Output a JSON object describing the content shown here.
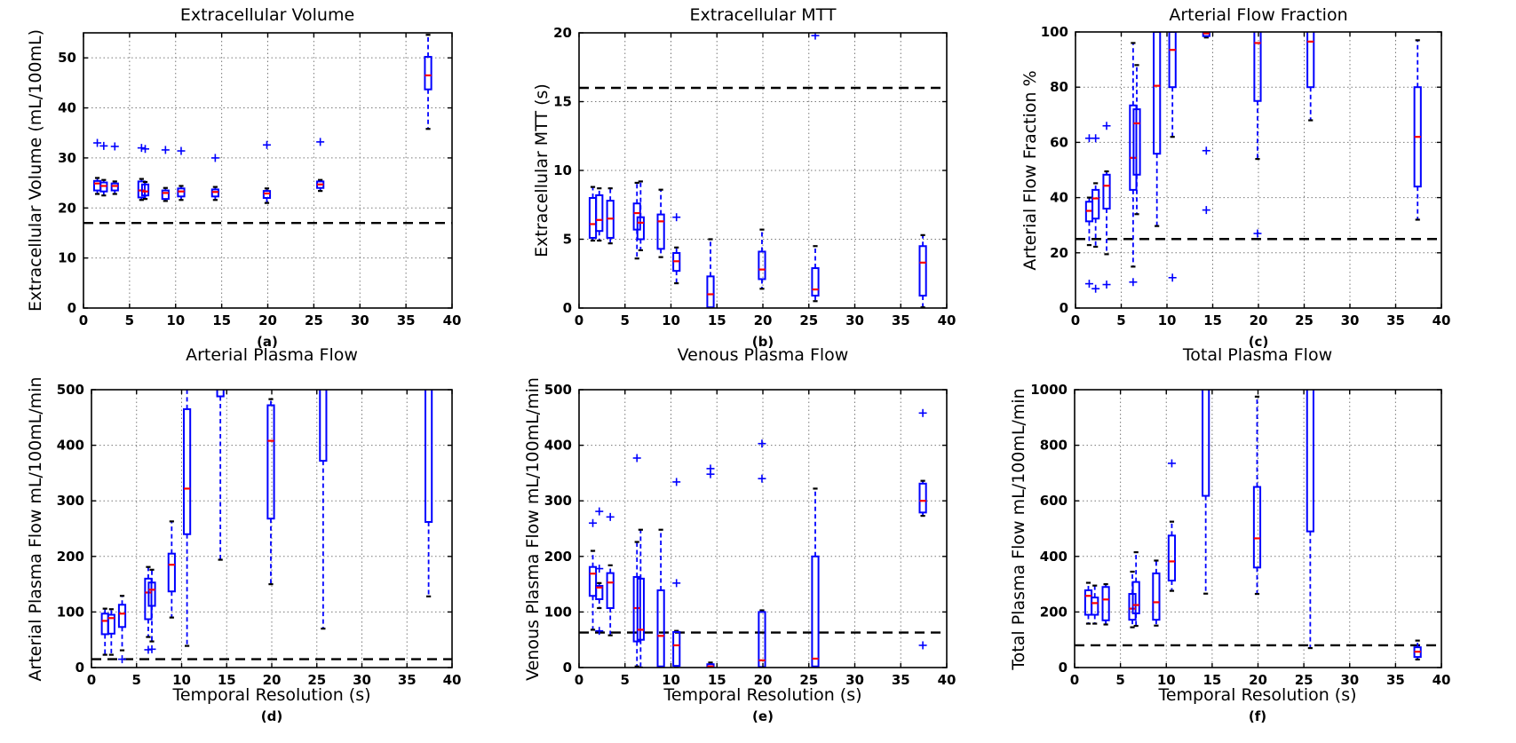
{
  "figure": {
    "xlabel": "Temporal Resolution (s)",
    "x_ticks": [
      0,
      5,
      10,
      15,
      20,
      25,
      30,
      35,
      40
    ],
    "x_range": [
      0,
      40
    ],
    "background": "#ffffff"
  },
  "colors": {
    "box": "#0000ff",
    "median": "#ff0000",
    "whisker": "#0000ff",
    "cap": "#000000",
    "flier": "#0000ff",
    "ref_line": "#000000",
    "grid": "#787878",
    "text": "#000000",
    "spine": "#000000"
  },
  "chart_data": [
    {
      "type": "boxplot",
      "caption": "(a)",
      "title": "Extracellular Volume",
      "ylabel": "Extracellular Volume (mL/100mL)",
      "ylim": [
        0,
        55
      ],
      "yticks": [
        0,
        10,
        20,
        30,
        40,
        50
      ],
      "ref_line": 17,
      "boxes": [
        {
          "x": 1.5,
          "lo": 22.8,
          "q1": 23.5,
          "m": 24.9,
          "q3": 25.4,
          "hi": 26.0,
          "f": [
            33.0
          ]
        },
        {
          "x": 2.2,
          "lo": 22.5,
          "q1": 23.3,
          "m": 24.4,
          "q3": 25.1,
          "hi": 25.6,
          "f": [
            32.4
          ]
        },
        {
          "x": 3.4,
          "lo": 22.8,
          "q1": 23.5,
          "m": 24.4,
          "q3": 24.9,
          "hi": 25.3,
          "f": [
            32.3
          ]
        },
        {
          "x": 6.3,
          "lo": 21.6,
          "q1": 22.1,
          "m": 23.5,
          "q3": 25.3,
          "hi": 25.8,
          "f": [
            32.0
          ]
        },
        {
          "x": 6.7,
          "lo": 21.8,
          "q1": 22.5,
          "m": 23.3,
          "q3": 24.7,
          "hi": 25.2,
          "f": [
            31.8
          ]
        },
        {
          "x": 8.9,
          "lo": 21.4,
          "q1": 21.8,
          "m": 23.0,
          "q3": 23.5,
          "hi": 24.0,
          "f": [
            31.6
          ]
        },
        {
          "x": 10.6,
          "lo": 21.6,
          "q1": 22.3,
          "m": 23.3,
          "q3": 23.9,
          "hi": 24.4,
          "f": [
            31.4
          ]
        },
        {
          "x": 14.3,
          "lo": 21.6,
          "q1": 22.3,
          "m": 23.2,
          "q3": 23.7,
          "hi": 24.2,
          "f": [
            30.0
          ]
        },
        {
          "x": 19.9,
          "lo": 21.0,
          "q1": 22.0,
          "m": 22.9,
          "q3": 23.4,
          "hi": 23.9,
          "f": [
            32.6
          ]
        },
        {
          "x": 25.7,
          "lo": 23.4,
          "q1": 24.0,
          "m": 24.7,
          "q3": 25.3,
          "hi": 25.6,
          "f": [
            33.2
          ]
        },
        {
          "x": 37.4,
          "lo": 35.8,
          "q1": 43.7,
          "m": 46.5,
          "q3": 50.2,
          "hi": 54.6,
          "f": []
        }
      ]
    },
    {
      "type": "boxplot",
      "caption": "(b)",
      "title": "Extracellular MTT",
      "ylabel": "Extracellular MTT (s)",
      "ylim": [
        0,
        20
      ],
      "yticks": [
        0,
        5,
        10,
        15,
        20
      ],
      "ref_line": 16,
      "boxes": [
        {
          "x": 1.5,
          "lo": 4.9,
          "q1": 5.1,
          "m": 6.1,
          "q3": 8.0,
          "hi": 8.8,
          "f": []
        },
        {
          "x": 2.2,
          "lo": 4.9,
          "q1": 5.6,
          "m": 6.4,
          "q3": 8.2,
          "hi": 8.7,
          "f": []
        },
        {
          "x": 3.4,
          "lo": 4.7,
          "q1": 5.1,
          "m": 6.5,
          "q3": 7.8,
          "hi": 8.7,
          "f": []
        },
        {
          "x": 6.3,
          "lo": 3.6,
          "q1": 5.7,
          "m": 6.9,
          "q3": 7.6,
          "hi": 9.1,
          "f": []
        },
        {
          "x": 6.7,
          "lo": 4.2,
          "q1": 5.0,
          "m": 6.2,
          "q3": 6.6,
          "hi": 9.2,
          "f": []
        },
        {
          "x": 8.9,
          "lo": 3.7,
          "q1": 4.3,
          "m": 6.3,
          "q3": 6.8,
          "hi": 8.6,
          "f": []
        },
        {
          "x": 10.6,
          "lo": 1.8,
          "q1": 2.7,
          "m": 3.4,
          "q3": 4.0,
          "hi": 4.4,
          "f": [
            6.6
          ]
        },
        {
          "x": 14.3,
          "lo": 0.0,
          "q1": 0.05,
          "m": 1.0,
          "q3": 2.3,
          "hi": 5.0,
          "f": []
        },
        {
          "x": 19.9,
          "lo": 1.4,
          "q1": 2.1,
          "m": 2.8,
          "q3": 4.1,
          "hi": 5.7,
          "f": []
        },
        {
          "x": 25.7,
          "lo": 0.5,
          "q1": 0.9,
          "m": 1.35,
          "q3": 2.9,
          "hi": 4.5,
          "f": [
            19.8
          ]
        },
        {
          "x": 37.4,
          "lo": 0.05,
          "q1": 0.9,
          "m": 3.3,
          "q3": 4.5,
          "hi": 5.3,
          "f": []
        }
      ]
    },
    {
      "type": "boxplot",
      "caption": "(c)",
      "title": "Arterial Flow Fraction",
      "ylabel": "Arterial Flow Fraction %",
      "ylim": [
        0,
        100
      ],
      "yticks": [
        0,
        20,
        40,
        60,
        80,
        100
      ],
      "ref_line": 25,
      "boxes": [
        {
          "x": 1.5,
          "lo": 22.8,
          "q1": 31.4,
          "m": 35.2,
          "q3": 38.5,
          "hi": 40.0,
          "f": [
            61.5,
            8.8
          ]
        },
        {
          "x": 2.2,
          "lo": 22.2,
          "q1": 32.4,
          "m": 39.7,
          "q3": 42.8,
          "hi": 45.2,
          "f": [
            61.5,
            7.0
          ]
        },
        {
          "x": 3.4,
          "lo": 19.5,
          "q1": 36.0,
          "m": 44.3,
          "q3": 48.3,
          "hi": 49.5,
          "f": [
            66.0,
            8.5
          ]
        },
        {
          "x": 6.3,
          "lo": 15.0,
          "q1": 42.8,
          "m": 54.4,
          "q3": 73.4,
          "hi": 96.0,
          "f": [
            9.4
          ]
        },
        {
          "x": 6.7,
          "lo": 34.0,
          "q1": 48.3,
          "m": 66.9,
          "q3": 72.0,
          "hi": 88.0,
          "f": []
        },
        {
          "x": 8.9,
          "lo": 29.7,
          "q1": 55.9,
          "m": 80.5,
          "q3": 100.0,
          "hi": 100.0,
          "f": []
        },
        {
          "x": 10.6,
          "lo": 62.0,
          "q1": 80.0,
          "m": 93.5,
          "q3": 100.0,
          "hi": 100.0,
          "f": [
            11.0
          ]
        },
        {
          "x": 14.3,
          "lo": 98.0,
          "q1": 98.5,
          "m": 99.5,
          "q3": 104.0,
          "hi": 104.0,
          "f": [
            57.0,
            35.5
          ]
        },
        {
          "x": 19.9,
          "lo": 54.0,
          "q1": 75.0,
          "m": 96.0,
          "q3": 102.0,
          "hi": 102.0,
          "f": [
            27.0
          ]
        },
        {
          "x": 25.7,
          "lo": 68.0,
          "q1": 80.0,
          "m": 96.5,
          "q3": 102.0,
          "hi": 102.0,
          "f": []
        },
        {
          "x": 37.4,
          "lo": 32.0,
          "q1": 44.0,
          "m": 62.0,
          "q3": 80.0,
          "hi": 97.0,
          "f": []
        }
      ]
    },
    {
      "type": "boxplot",
      "caption": "(d)",
      "title": "Arterial Plasma Flow",
      "ylabel": "Arterial Plasma Flow mL/100mL/min",
      "ylim": [
        0,
        500
      ],
      "yticks": [
        0,
        100,
        200,
        300,
        400,
        500
      ],
      "ref_line": 15,
      "boxes": [
        {
          "x": 1.5,
          "lo": 23,
          "q1": 60,
          "m": 84,
          "q3": 97,
          "hi": 106,
          "f": []
        },
        {
          "x": 2.2,
          "lo": 23,
          "q1": 61,
          "m": 89,
          "q3": 95,
          "hi": 105,
          "f": []
        },
        {
          "x": 3.4,
          "lo": 31,
          "q1": 73,
          "m": 97,
          "q3": 113,
          "hi": 129,
          "f": [
            15
          ]
        },
        {
          "x": 6.3,
          "lo": 55,
          "q1": 87,
          "m": 135,
          "q3": 160,
          "hi": 181,
          "f": [
            32
          ]
        },
        {
          "x": 6.7,
          "lo": 47,
          "q1": 111,
          "m": 140,
          "q3": 153,
          "hi": 176,
          "f": [
            33
          ]
        },
        {
          "x": 8.9,
          "lo": 90,
          "q1": 137,
          "m": 185,
          "q3": 205,
          "hi": 263,
          "f": []
        },
        {
          "x": 10.6,
          "lo": 39,
          "q1": 240,
          "m": 322,
          "q3": 465,
          "hi": 530,
          "f": []
        },
        {
          "x": 14.3,
          "lo": 194,
          "q1": 488,
          "m": 560,
          "q3": 650,
          "hi": 700,
          "f": []
        },
        {
          "x": 19.9,
          "lo": 150,
          "q1": 268,
          "m": 408,
          "q3": 472,
          "hi": 483,
          "f": []
        },
        {
          "x": 25.7,
          "lo": 70,
          "q1": 372,
          "m": 560,
          "q3": 660,
          "hi": 700,
          "f": []
        },
        {
          "x": 37.4,
          "lo": 128,
          "q1": 262,
          "m": 560,
          "q3": 660,
          "hi": 700,
          "f": []
        }
      ]
    },
    {
      "type": "boxplot",
      "caption": "(e)",
      "title": "Venous Plasma Flow",
      "ylabel": "Venous Plasma Flow mL/100mL/min",
      "ylim": [
        0,
        500
      ],
      "yticks": [
        0,
        100,
        200,
        300,
        400,
        500
      ],
      "ref_line": 63,
      "boxes": [
        {
          "x": 1.5,
          "lo": 68,
          "q1": 129,
          "m": 169,
          "q3": 181,
          "hi": 210,
          "f": [
            260
          ]
        },
        {
          "x": 2.2,
          "lo": 107,
          "q1": 123,
          "m": 144,
          "q3": 147,
          "hi": 152,
          "f": [
            281,
            178,
            66
          ]
        },
        {
          "x": 3.4,
          "lo": 58,
          "q1": 107,
          "m": 153,
          "q3": 170,
          "hi": 184,
          "f": [
            271
          ]
        },
        {
          "x": 6.3,
          "lo": 2,
          "q1": 47,
          "m": 107,
          "q3": 163,
          "hi": 226,
          "f": [
            377
          ]
        },
        {
          "x": 6.7,
          "lo": 0,
          "q1": 50,
          "m": 68,
          "q3": 160,
          "hi": 248,
          "f": []
        },
        {
          "x": 8.9,
          "lo": 0,
          "q1": 2,
          "m": 57,
          "q3": 139,
          "hi": 248,
          "f": []
        },
        {
          "x": 10.6,
          "lo": 0,
          "q1": 3,
          "m": 40,
          "q3": 64,
          "hi": 66,
          "f": [
            334,
            152
          ]
        },
        {
          "x": 14.3,
          "lo": 0,
          "q1": 0,
          "m": 2,
          "q3": 6,
          "hi": 9,
          "f": [
            358,
            348
          ]
        },
        {
          "x": 19.9,
          "lo": 0,
          "q1": 1,
          "m": 13,
          "q3": 100,
          "hi": 103,
          "f": [
            403,
            340
          ]
        },
        {
          "x": 25.7,
          "lo": 0,
          "q1": 2,
          "m": 16,
          "q3": 200,
          "hi": 322,
          "f": []
        },
        {
          "x": 37.4,
          "lo": 273,
          "q1": 279,
          "m": 300,
          "q3": 331,
          "hi": 336,
          "f": [
            458,
            40
          ]
        }
      ]
    },
    {
      "type": "boxplot",
      "caption": "(f)",
      "title": "Total Plasma Flow",
      "ylabel": "Total Plasma Flow mL/100mL/min",
      "ylim": [
        0,
        1000
      ],
      "yticks": [
        0,
        200,
        400,
        600,
        800,
        1000
      ],
      "ref_line": 80,
      "boxes": [
        {
          "x": 1.5,
          "lo": 158,
          "q1": 190,
          "m": 258,
          "q3": 278,
          "hi": 305,
          "f": []
        },
        {
          "x": 2.2,
          "lo": 158,
          "q1": 190,
          "m": 232,
          "q3": 252,
          "hi": 295,
          "f": []
        },
        {
          "x": 3.4,
          "lo": 155,
          "q1": 170,
          "m": 245,
          "q3": 290,
          "hi": 300,
          "f": []
        },
        {
          "x": 6.3,
          "lo": 145,
          "q1": 172,
          "m": 212,
          "q3": 265,
          "hi": 345,
          "f": []
        },
        {
          "x": 6.7,
          "lo": 150,
          "q1": 195,
          "m": 225,
          "q3": 308,
          "hi": 415,
          "f": []
        },
        {
          "x": 8.9,
          "lo": 151,
          "q1": 172,
          "m": 235,
          "q3": 339,
          "hi": 385,
          "f": []
        },
        {
          "x": 10.6,
          "lo": 276,
          "q1": 313,
          "m": 382,
          "q3": 475,
          "hi": 525,
          "f": [
            735
          ]
        },
        {
          "x": 14.3,
          "lo": 266,
          "q1": 618,
          "m": 1020,
          "q3": 1100,
          "hi": 1150,
          "f": []
        },
        {
          "x": 19.9,
          "lo": 265,
          "q1": 360,
          "m": 465,
          "q3": 650,
          "hi": 975,
          "f": []
        },
        {
          "x": 25.7,
          "lo": 70,
          "q1": 490,
          "m": 1020,
          "q3": 1100,
          "hi": 1150,
          "f": []
        },
        {
          "x": 37.4,
          "lo": 29,
          "q1": 38,
          "m": 57,
          "q3": 73,
          "hi": 97,
          "f": []
        }
      ]
    }
  ]
}
